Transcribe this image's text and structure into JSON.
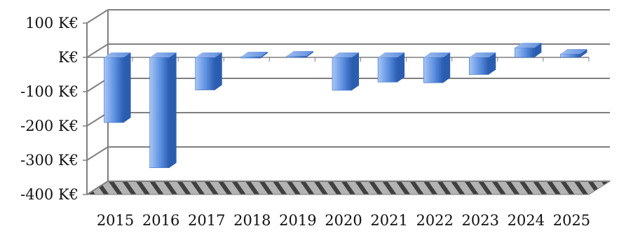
{
  "chart_data": {
    "type": "bar",
    "categories": [
      "2015",
      "2016",
      "2017",
      "2018",
      "2019",
      "2020",
      "2021",
      "2022",
      "2023",
      "2024",
      "2025"
    ],
    "values": [
      -190,
      -322,
      -95,
      2,
      4,
      -96,
      -72,
      -74,
      -50,
      28,
      10
    ],
    "ylim": [
      -400,
      100
    ],
    "yticks": [
      100,
      0,
      -100,
      -200,
      -300,
      -400
    ],
    "ytick_labels": [
      "100 K€",
      "K€",
      "-100 K€",
      "-200 K€",
      "-300 K€",
      "-400 K€"
    ],
    "title": "",
    "xlabel": "",
    "ylabel": "",
    "grid": true,
    "three_d": true,
    "colors": {
      "bar_light": "#a8c6f5",
      "bar_mid": "#5b8fe0",
      "bar_dark": "#2a5cb0",
      "grid": "#7f7f7f",
      "floor_stripe": "#b3b3b3",
      "floor_dark": "#404040"
    }
  }
}
